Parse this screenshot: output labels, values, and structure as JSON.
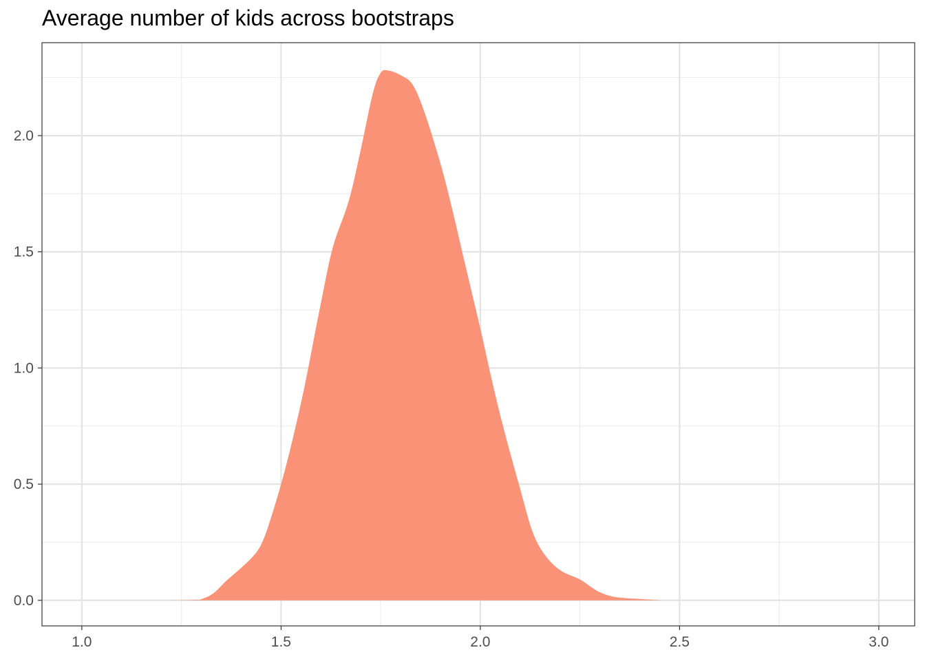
{
  "chart_data": {
    "type": "area",
    "title": "Average number of kids across bootstraps",
    "xlabel": "",
    "ylabel": "",
    "xlim": [
      0.9,
      3.09
    ],
    "ylim": [
      -0.11,
      2.4
    ],
    "x_ticks": [
      "1.0",
      "1.5",
      "2.0",
      "2.5",
      "3.0"
    ],
    "y_ticks": [
      "0.0",
      "0.5",
      "1.0",
      "1.5",
      "2.0"
    ],
    "x_tick_values": [
      1.0,
      1.5,
      2.0,
      2.5,
      3.0
    ],
    "y_tick_values": [
      0.0,
      0.5,
      1.0,
      1.5,
      2.0
    ],
    "grid": true,
    "fill_color": "#FA8C71",
    "series": [
      {
        "x": [
          1.0,
          1.2,
          1.28,
          1.3,
          1.33,
          1.36,
          1.38,
          1.4,
          1.43,
          1.45,
          1.47,
          1.5,
          1.53,
          1.56,
          1.6,
          1.63,
          1.67,
          1.7,
          1.73,
          1.75,
          1.77,
          1.8,
          1.83,
          1.86,
          1.9,
          1.93,
          1.96,
          2.0,
          2.03,
          2.06,
          2.1,
          2.13,
          2.16,
          2.2,
          2.25,
          2.28,
          2.3,
          2.33,
          2.36,
          2.4,
          2.45,
          2.5,
          3.0
        ],
        "y": [
          0.0,
          0.0,
          0.002,
          0.005,
          0.03,
          0.08,
          0.11,
          0.14,
          0.19,
          0.24,
          0.33,
          0.5,
          0.7,
          0.93,
          1.28,
          1.52,
          1.72,
          1.94,
          2.18,
          2.27,
          2.28,
          2.26,
          2.22,
          2.1,
          1.88,
          1.68,
          1.46,
          1.17,
          0.94,
          0.73,
          0.48,
          0.3,
          0.2,
          0.13,
          0.09,
          0.055,
          0.035,
          0.017,
          0.01,
          0.006,
          0.001,
          0.0,
          0.0
        ]
      }
    ]
  }
}
